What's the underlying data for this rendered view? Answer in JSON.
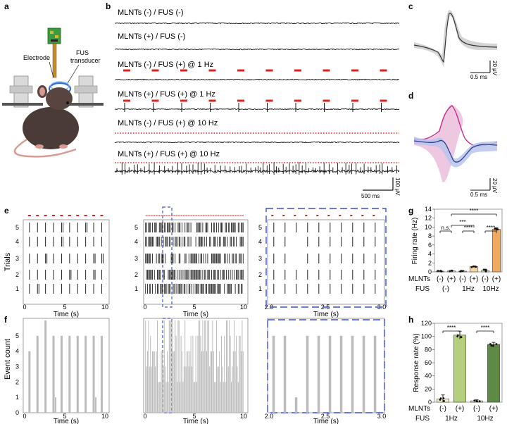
{
  "panel_letters": [
    "a",
    "b",
    "c",
    "d",
    "e",
    "f",
    "g",
    "h"
  ],
  "panel_a": {
    "labels": {
      "electrode": "Electrode",
      "fus_line1": "FUS",
      "fus_line2": "transducer"
    }
  },
  "panel_b": {
    "traces": [
      {
        "label": "MLNTs (-) / FUS (-)",
        "stim": "none",
        "spikes": false
      },
      {
        "label": "MLNTs (+) / FUS (-)",
        "stim": "none",
        "spikes": false
      },
      {
        "label": "MLNTs (-) / FUS (+) @ 1 Hz",
        "stim": "1Hz",
        "spikes": false
      },
      {
        "label": "MLNTs (+) / FUS (+) @ 1 Hz",
        "stim": "1Hz",
        "spikes": true
      },
      {
        "label": "MLNTs (-) / FUS (+) @ 10 Hz",
        "stim": "10Hz",
        "spikes": false
      },
      {
        "label": "MLNTs (+) / FUS (+) @ 10 Hz",
        "stim": "10Hz",
        "spikes": true
      }
    ],
    "scalebar_time": "500 ms",
    "scalebar_volt": "100 μV"
  },
  "panel_c": {
    "scalebar_volt": "20 μV",
    "scalebar_time": "0.5 ms"
  },
  "panel_d": {
    "scalebar_volt": "20 μV",
    "scalebar_time": "0.5 ms"
  },
  "colors": {
    "stim_red": "#e0201b",
    "box_blue": "#3a4fd8",
    "raster": "#222222",
    "hist_gray": "#bbbbbb",
    "bar_1hz_pos": "#f4d79a",
    "bar_10hz_pos": "#f0a95e",
    "bar_neg": "#f7efc9",
    "bar_h_1hz": "#b5cf7c",
    "bar_h_10hz": "#5f8a45",
    "wave_gray": "#9a9a9a",
    "wave_blue": "#8a9fd6",
    "wave_pink": "#e5a2cf"
  },
  "panel_e": {
    "ylabel": "Trials",
    "trial_ticks": [
      "1",
      "2",
      "3",
      "4",
      "5"
    ],
    "sub1": {
      "xlabel": "Time (s)",
      "xticks": [
        "0",
        "5",
        "10"
      ]
    },
    "sub2": {
      "xlabel": "Time (s)",
      "xticks": [
        "0",
        "5",
        "10"
      ]
    },
    "sub3": {
      "xlabel": "Time (s)",
      "xticks": [
        "2.0",
        "2.5",
        "3.0"
      ]
    }
  },
  "panel_f": {
    "ylabel": "Event count",
    "yticks": [
      "0",
      "1",
      "2",
      "3",
      "4",
      "5"
    ],
    "sub1": {
      "xlabel": "Time (s)",
      "xticks": [
        "0",
        "5",
        "10"
      ]
    },
    "sub2": {
      "xlabel": "Time (s)",
      "xticks": [
        "0",
        "5",
        "10"
      ]
    },
    "sub3": {
      "xlabel": "Time (s)",
      "xticks": [
        "2.0",
        "2.5",
        "3.0"
      ]
    }
  },
  "chart_data": [
    {
      "id": "g",
      "type": "bar",
      "ylabel": "Firing rate (Hz)",
      "ylim": [
        0,
        14
      ],
      "yticks": [
        "0",
        "2",
        "4",
        "6",
        "8",
        "10",
        "12",
        "14"
      ],
      "row1_label": "MLNTs",
      "row2_label": "FUS",
      "mlnts": [
        "(-)",
        "(+)",
        "(-)",
        "(+)",
        "(-)",
        "(+)"
      ],
      "fus": [
        "(-)",
        "1Hz",
        "10Hz"
      ],
      "values": [
        0.15,
        0.2,
        0.15,
        1.15,
        0.3,
        9.5
      ],
      "errors": [
        0.1,
        0.1,
        0.1,
        0.12,
        0.3,
        0.35
      ],
      "significance": [
        {
          "pair": [
            0,
            1
          ],
          "label": "n.s."
        },
        {
          "pair": [
            1,
            3
          ],
          "label": "***"
        },
        {
          "pair": [
            2,
            3
          ],
          "label": "****"
        },
        {
          "pair": [
            4,
            5
          ],
          "label": "****"
        },
        {
          "pair": [
            1,
            5
          ],
          "label": "****"
        }
      ]
    },
    {
      "id": "h",
      "type": "bar",
      "ylabel": "Response rate (%)",
      "ylim": [
        0,
        120
      ],
      "yticks": [
        "0",
        "20",
        "40",
        "60",
        "80",
        "100",
        "120"
      ],
      "row1_label": "MLNTs",
      "row2_label": "FUS",
      "mlnts": [
        "(-)",
        "(+)",
        "(-)",
        "(+)"
      ],
      "fus": [
        "1Hz",
        "10Hz"
      ],
      "values": [
        5,
        102,
        2,
        88
      ],
      "errors": [
        6,
        6,
        1.5,
        3
      ],
      "significance": [
        {
          "pair": [
            0,
            1
          ],
          "label": "****"
        },
        {
          "pair": [
            2,
            3
          ],
          "label": "****"
        }
      ]
    }
  ]
}
